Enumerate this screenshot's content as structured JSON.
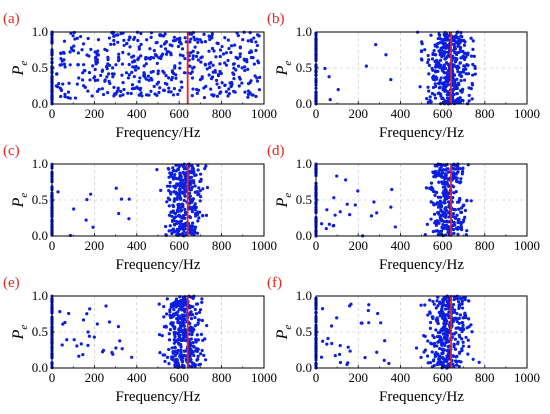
{
  "figure": {
    "panel_color": "#e8231c",
    "point_color": "#0a1fe0",
    "marker_color": "#e8231c",
    "grid": true
  },
  "chart_data": [
    {
      "id": "a",
      "panel_label": "(a)",
      "type": "scatter",
      "xlabel": "Frequency/Hz",
      "ylabel_main": "P",
      "ylabel_sub": "e",
      "xlim": [
        0,
        1000
      ],
      "ylim": [
        0,
        1.0
      ],
      "xticks": [
        "0",
        "200",
        "400",
        "600",
        "800",
        "1000"
      ],
      "yticks": [
        "0.0",
        "0.5",
        "1.0"
      ],
      "marker_x": 640,
      "distribution": "uniform",
      "point_count": 480,
      "seed": 11
    },
    {
      "id": "b",
      "panel_label": "(b)",
      "type": "scatter",
      "xlabel": "Frequency/Hz",
      "ylabel_main": "P",
      "ylabel_sub": "e",
      "xlim": [
        0,
        1000
      ],
      "ylim": [
        0,
        1.0
      ],
      "xticks": [
        "0",
        "200",
        "400",
        "600",
        "800",
        "1000"
      ],
      "yticks": [
        "0.0",
        "0.5",
        "1.0"
      ],
      "marker_x": 640,
      "distribution": "clustered",
      "cluster_center": 630,
      "cluster_spread": 85,
      "outliers": 8,
      "point_count": 420,
      "seed": 23
    },
    {
      "id": "c",
      "panel_label": "(c)",
      "type": "scatter",
      "xlabel": "Frequency/Hz",
      "ylabel_main": "P",
      "ylabel_sub": "e",
      "xlim": [
        0,
        1000
      ],
      "ylim": [
        0,
        1.0
      ],
      "xticks": [
        "0",
        "200",
        "400",
        "600",
        "800",
        "1000"
      ],
      "yticks": [
        "0.0",
        "0.5",
        "1.0"
      ],
      "marker_x": 640,
      "distribution": "clustered",
      "cluster_center": 625,
      "cluster_spread": 70,
      "outliers": 12,
      "point_count": 340,
      "seed": 37
    },
    {
      "id": "d",
      "panel_label": "(d)",
      "type": "scatter",
      "xlabel": "Frequency/Hz",
      "ylabel_main": "P",
      "ylabel_sub": "e",
      "xlim": [
        0,
        1000
      ],
      "ylim": [
        0,
        1.0
      ],
      "xticks": [
        "0",
        "200",
        "400",
        "600",
        "800",
        "1000"
      ],
      "yticks": [
        "0.0",
        "0.5",
        "1.0"
      ],
      "marker_x": 640,
      "distribution": "clustered",
      "cluster_center": 625,
      "cluster_spread": 70,
      "outliers": 22,
      "point_count": 330,
      "seed": 41
    },
    {
      "id": "e",
      "panel_label": "(e)",
      "type": "scatter",
      "xlabel": "Frequency/Hz",
      "ylabel_main": "P",
      "ylabel_sub": "e",
      "xlim": [
        0,
        1000
      ],
      "ylim": [
        0,
        1.0
      ],
      "xticks": [
        "0",
        "200",
        "400",
        "600",
        "800",
        "1000"
      ],
      "yticks": [
        "0.0",
        "0.5",
        "1.0"
      ],
      "marker_x": 640,
      "distribution": "clustered",
      "cluster_center": 620,
      "cluster_spread": 75,
      "outliers": 30,
      "point_count": 380,
      "seed": 53
    },
    {
      "id": "f",
      "panel_label": "(f)",
      "type": "scatter",
      "xlabel": "Frequency/Hz",
      "ylabel_main": "P",
      "ylabel_sub": "e",
      "xlim": [
        0,
        1000
      ],
      "ylim": [
        0,
        1.0
      ],
      "xticks": [
        "0",
        "200",
        "400",
        "600",
        "800",
        "1000"
      ],
      "yticks": [
        "0.0",
        "0.5",
        "1.0"
      ],
      "marker_x": 640,
      "distribution": "clustered",
      "cluster_center": 620,
      "cluster_spread": 75,
      "outliers": 30,
      "point_count": 380,
      "seed": 67
    }
  ]
}
